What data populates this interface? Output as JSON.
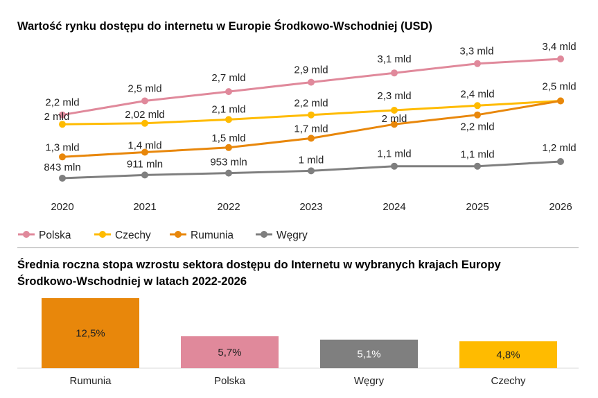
{
  "chart_data": [
    {
      "type": "line",
      "title": "Wartość rynku dostępu do internetu w Europie Środkowo-Wschodniej (USD)",
      "x": [
        "2020",
        "2021",
        "2022",
        "2023",
        "2024",
        "2025",
        "2026"
      ],
      "value_unit": "mld USD",
      "legend_position": "bottom-left",
      "series": [
        {
          "name": "Polska",
          "color": "#e0899b",
          "values": [
            2.2,
            2.5,
            2.7,
            2.9,
            3.1,
            3.3,
            3.4
          ],
          "labels": [
            "2,2 mld",
            "2,5 mld",
            "2,7 mld",
            "2,9 mld",
            "3,1 mld",
            "3,3 mld",
            "3,4 mld"
          ]
        },
        {
          "name": "Czechy",
          "color": "#ffbb00",
          "values": [
            2.0,
            2.02,
            2.1,
            2.2,
            2.3,
            2.4,
            2.5
          ],
          "labels": [
            "2 mld",
            "2,02 mld",
            "2,1 mld",
            "2,2 mld",
            "2,3 mld",
            "2,4 mld",
            "2,5 mld"
          ]
        },
        {
          "name": "Rumunia",
          "color": "#e8870b",
          "values": [
            1.3,
            1.4,
            1.5,
            1.7,
            2.0,
            2.2,
            2.5
          ],
          "labels": [
            "1,3 mld",
            "1,4 mld",
            "1,5 mld",
            "1,7 mld",
            "2 mld",
            "2,2 mld",
            ""
          ]
        },
        {
          "name": "Węgry",
          "color": "#7f7f7f",
          "values": [
            0.843,
            0.911,
            0.953,
            1.0,
            1.1,
            1.1,
            1.2
          ],
          "labels": [
            "843 mln",
            "911 mln",
            "953  mln",
            "1 mld",
            "1,1 mld",
            "1,1 mld",
            "1,2 mld"
          ]
        }
      ],
      "grid": false
    },
    {
      "type": "bar",
      "title": "Średnia roczna stopa wzrostu sektora dostępu do Internetu w wybranych krajach Europy Środkowo-Wschodniej w latach 2022-2026",
      "title_lines": [
        "Średnia roczna stopa wzrostu sektora dostępu do Internetu w wybranych krajach Europy",
        "Środkowo-Wschodniej w latach 2022-2026"
      ],
      "categories": [
        "Rumunia",
        "Polska",
        "Węgry",
        "Czechy"
      ],
      "values": [
        12.5,
        5.7,
        5.1,
        4.8
      ],
      "labels": [
        "12,5%",
        "5,7%",
        "5,1%",
        "4,8%"
      ],
      "colors": [
        "#e8870b",
        "#e0899b",
        "#7f7f7f",
        "#ffbb00"
      ],
      "value_label_colors": [
        "#222222",
        "#222222",
        "#ffffff",
        "#222222"
      ],
      "grid": false
    }
  ]
}
